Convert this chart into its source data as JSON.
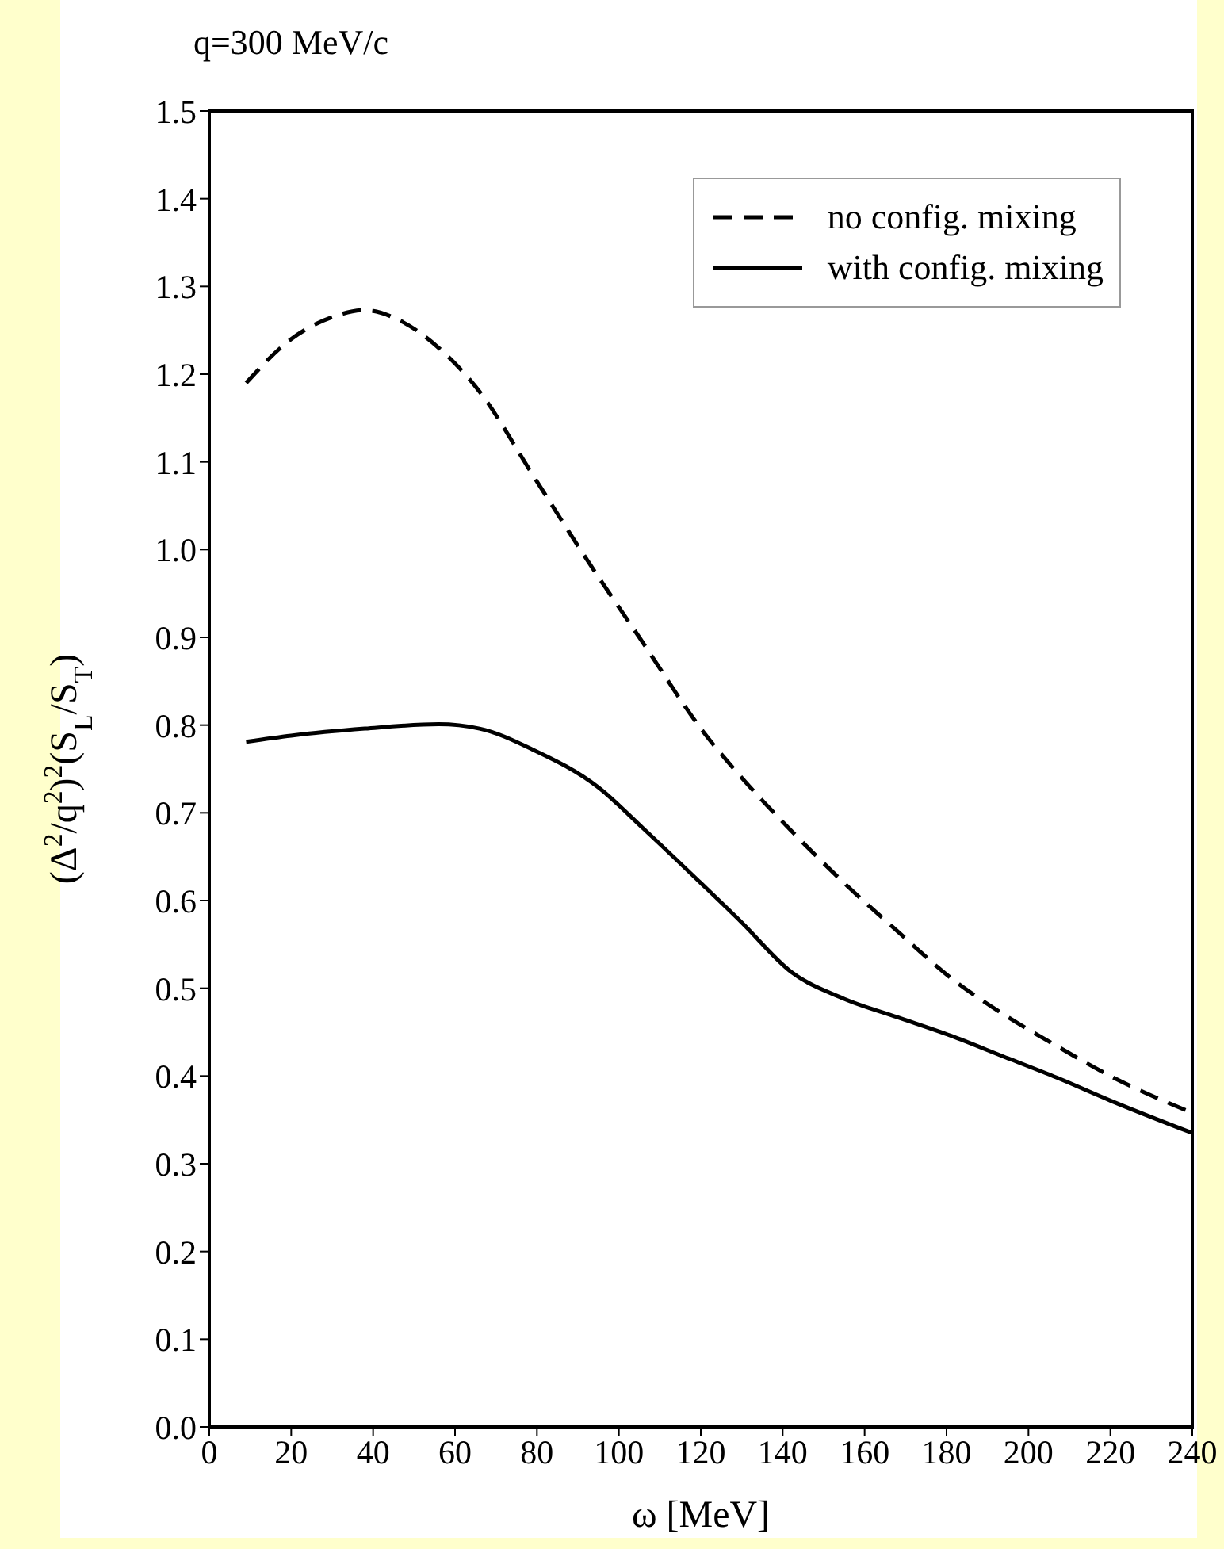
{
  "chart_data": {
    "type": "line",
    "title": "q=300 MeV/c",
    "xlabel": "ω [MeV]",
    "ylabel": "(Δ$^{2}$/q$^{2}$)$^{2}$(S$_{L}$/S$_{T}$)",
    "xlim": [
      0,
      240
    ],
    "xticks": [
      0,
      20,
      40,
      60,
      80,
      100,
      120,
      140,
      160,
      180,
      200,
      220,
      240
    ],
    "ylim": [
      0,
      1.5
    ],
    "yticks": [
      {
        "value": 0,
        "label": "0.0"
      },
      0.1,
      0.2,
      0.3,
      0.4,
      0.5,
      0.6,
      0.7,
      0.8,
      0.9,
      {
        "value": 1,
        "label": "1.0"
      },
      1.1,
      1.2,
      1.3,
      1.4,
      1.5
    ],
    "grid": false,
    "legend": "top right",
    "marker": "none",
    "series": [
      {
        "name": "no config. mixing",
        "color": "#000000",
        "line_style": "dashed",
        "x": [
          9,
          20,
          30,
          38,
          47,
          56,
          66,
          79,
          92,
          105,
          121,
          130,
          142,
          155,
          168,
          181,
          194,
          207,
          220,
          240
        ],
        "values": [
          1.19,
          1.24,
          1.265,
          1.273,
          1.26,
          1.23,
          1.18,
          1.085,
          0.99,
          0.9,
          0.79,
          0.74,
          0.68,
          0.62,
          0.565,
          0.512,
          0.47,
          0.434,
          0.4,
          0.358
        ]
      },
      {
        "name": "with config. mixing",
        "color": "#000000",
        "line_style": "solid",
        "x": [
          9,
          20,
          38,
          56,
          66,
          79,
          95,
          106,
          120,
          130,
          142,
          155,
          168,
          181,
          194,
          207,
          220,
          240
        ],
        "values": [
          0.781,
          0.788,
          0.796,
          0.801,
          0.796,
          0.772,
          0.729,
          0.682,
          0.62,
          0.575,
          0.519,
          0.488,
          0.467,
          0.446,
          0.422,
          0.398,
          0.372,
          0.335
        ]
      }
    ]
  }
}
